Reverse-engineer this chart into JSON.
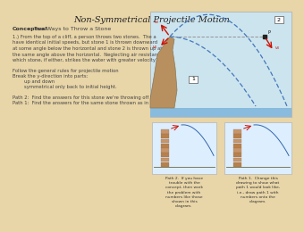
{
  "title": "Non-Symmetrical Projectile Motion",
  "bg_color": "#e8d5a8",
  "text_color": "#222222",
  "conceptual_bold": "Conceptual",
  "conceptual_rest": " Two Ways to Throw a Stone",
  "body_text": [
    "1.) From the top of a cliff, a person throws two stones.  The a",
    "have identical initial speeds, but stone 1 is thrown downward",
    "at some angle below the horizontal and stone 2 is thrown up at",
    "the same angle above the horizontal.  Neglecting air resistance,",
    "which stone, if either, strikes the water with greater velocity?"
  ],
  "rules_text": [
    "Follow the general rules for projectile motion",
    "Break the y-direction into parts:",
    "        up and down",
    "        symmetrical only back to initial height."
  ],
  "path_text": [
    "Path 2:  Find the answers for this stone we're throwing off the",
    "Path 1:  Find the answers for the same stone thrown as in pa"
  ],
  "path2_caption": "Path 2.  If you have\ntrouble with the\nconcept, then work\nthe problem with\nnumbers like those\nshown in this\ndiagram.",
  "path1_caption": "Path 1.  Change this\ndrawing to show what\npath 1 would look like,\ni.e., draw path 1 with\nnumbers onto the\ndiagram.",
  "diagram_bg": "#cce4ee",
  "cliff_color": "#b89060",
  "water_color": "#88bbdd",
  "arrow_color": "#cc1100",
  "dashed_color": "#4477bb",
  "small_bg": "#ddeeff"
}
